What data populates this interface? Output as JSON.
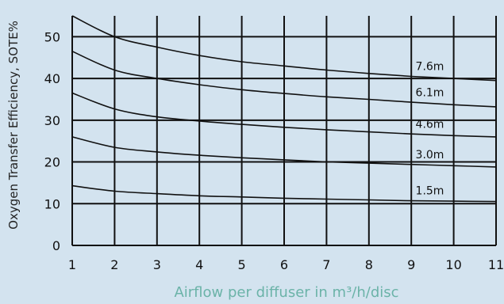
{
  "chart_data": {
    "type": "line",
    "title": "",
    "xlabel": "Airflow per diffuser in m³/h/disc",
    "ylabel": "Oxygen Transfer Efficiency, SOTE%",
    "xlim": [
      1,
      11
    ],
    "ylim": [
      0,
      55
    ],
    "xticks": [
      1,
      2,
      3,
      4,
      5,
      6,
      7,
      8,
      9,
      10,
      11
    ],
    "yticks": [
      0,
      10,
      20,
      30,
      40,
      50
    ],
    "grid": true,
    "x": [
      1,
      2,
      3,
      4,
      5,
      6,
      7,
      8,
      9,
      10,
      11
    ],
    "series": [
      {
        "name": "7.6m",
        "values": [
          55,
          50,
          47.5,
          45.5,
          44,
          43,
          42,
          41.2,
          40.5,
          40,
          39.5
        ]
      },
      {
        "name": "6.1m",
        "values": [
          46.5,
          42,
          40,
          38.5,
          37.3,
          36.4,
          35.6,
          35,
          34.3,
          33.7,
          33.2
        ]
      },
      {
        "name": "4.6m",
        "values": [
          36.5,
          32.7,
          30.8,
          29.8,
          29,
          28.3,
          27.7,
          27.2,
          26.7,
          26.3,
          26
        ]
      },
      {
        "name": "3.0m",
        "values": [
          26,
          23.5,
          22.4,
          21.6,
          21,
          20.5,
          20,
          19.7,
          19.4,
          19.1,
          18.8
        ]
      },
      {
        "name": "1.5m",
        "values": [
          14.3,
          13,
          12.4,
          11.9,
          11.6,
          11.3,
          11.1,
          10.9,
          10.7,
          10.6,
          10.5
        ]
      }
    ],
    "colors": {
      "background": "#d3e3ef",
      "line": "#111111",
      "grid": "#111111",
      "xlabel": "#6bb3a8"
    }
  }
}
